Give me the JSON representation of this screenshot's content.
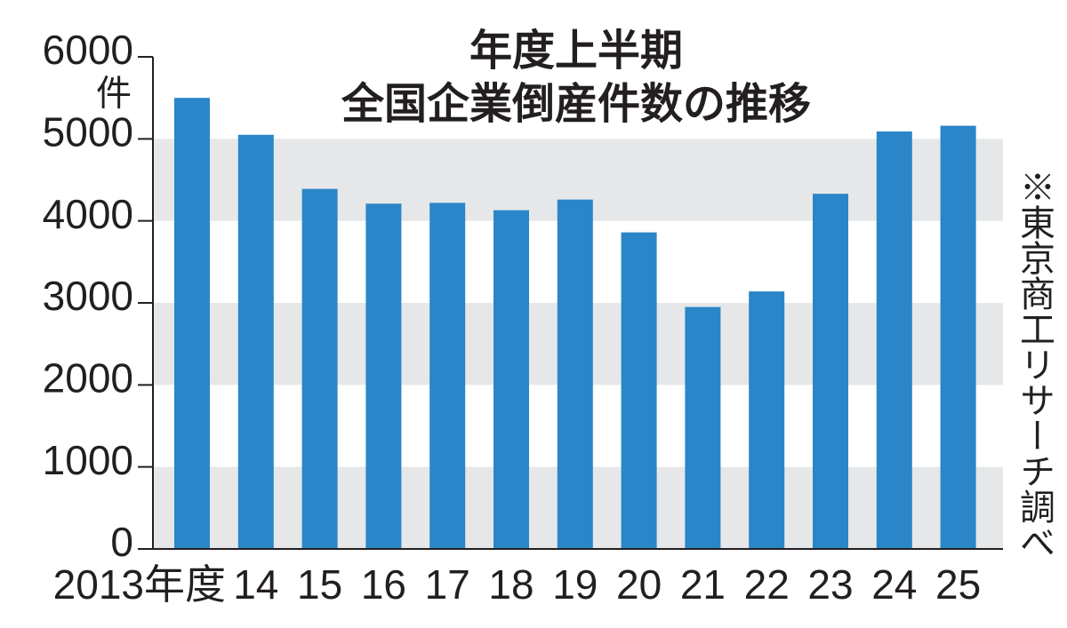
{
  "chart_data": {
    "type": "bar",
    "title": [
      "年度上半期",
      "全国企業倒産件数の推移"
    ],
    "y_unit": "件",
    "source": "※東京商工リサーチ調べ",
    "categories": [
      "2013年度",
      "14",
      "15",
      "16",
      "17",
      "18",
      "19",
      "20",
      "21",
      "22",
      "23",
      "24",
      "25"
    ],
    "values": [
      5500,
      5050,
      4390,
      4210,
      4220,
      4130,
      4260,
      3860,
      2950,
      3140,
      4330,
      5090,
      5160
    ],
    "color": "#2a86c8",
    "ylim": [
      0,
      6000
    ],
    "yticks": [
      0,
      1000,
      2000,
      3000,
      4000,
      5000,
      6000
    ],
    "bands": true
  }
}
